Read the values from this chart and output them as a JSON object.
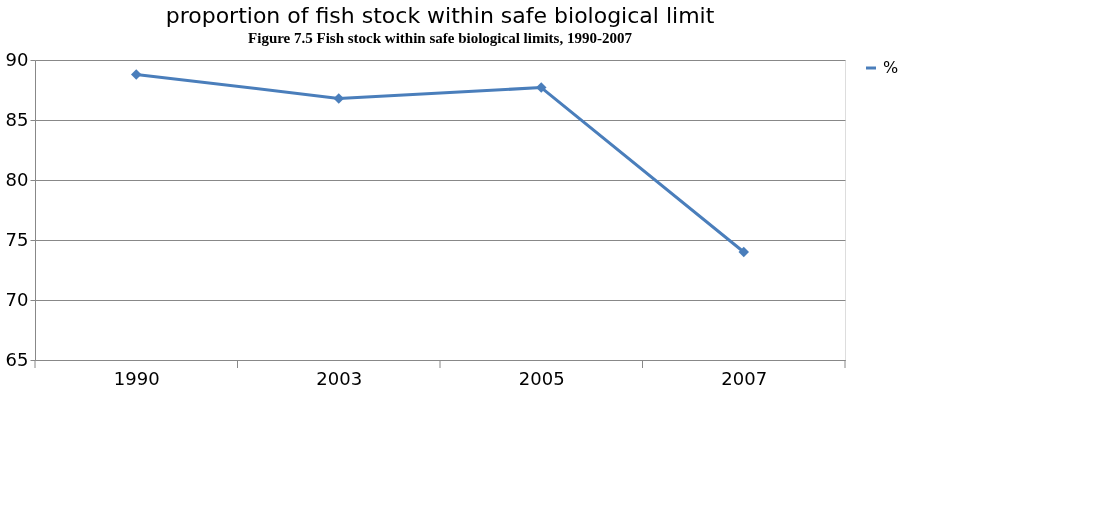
{
  "chart_data": {
    "type": "line",
    "title": "proportion of fish stock within safe biological limit",
    "annotations": [
      "Figure 7.5 Fish stock within safe biological limits, 1990-2007"
    ],
    "categories": [
      "1990",
      "2003",
      "2005",
      "2007"
    ],
    "series": [
      {
        "name": "%",
        "color": "#4a7ebb",
        "values": [
          88.8,
          86.8,
          87.7,
          74.0
        ]
      }
    ],
    "ylim": [
      65,
      90
    ],
    "yticks": [
      65,
      70,
      75,
      80,
      85,
      90
    ],
    "grid": "y",
    "legend": "right",
    "marker": "diamond",
    "line_style": "solid"
  }
}
